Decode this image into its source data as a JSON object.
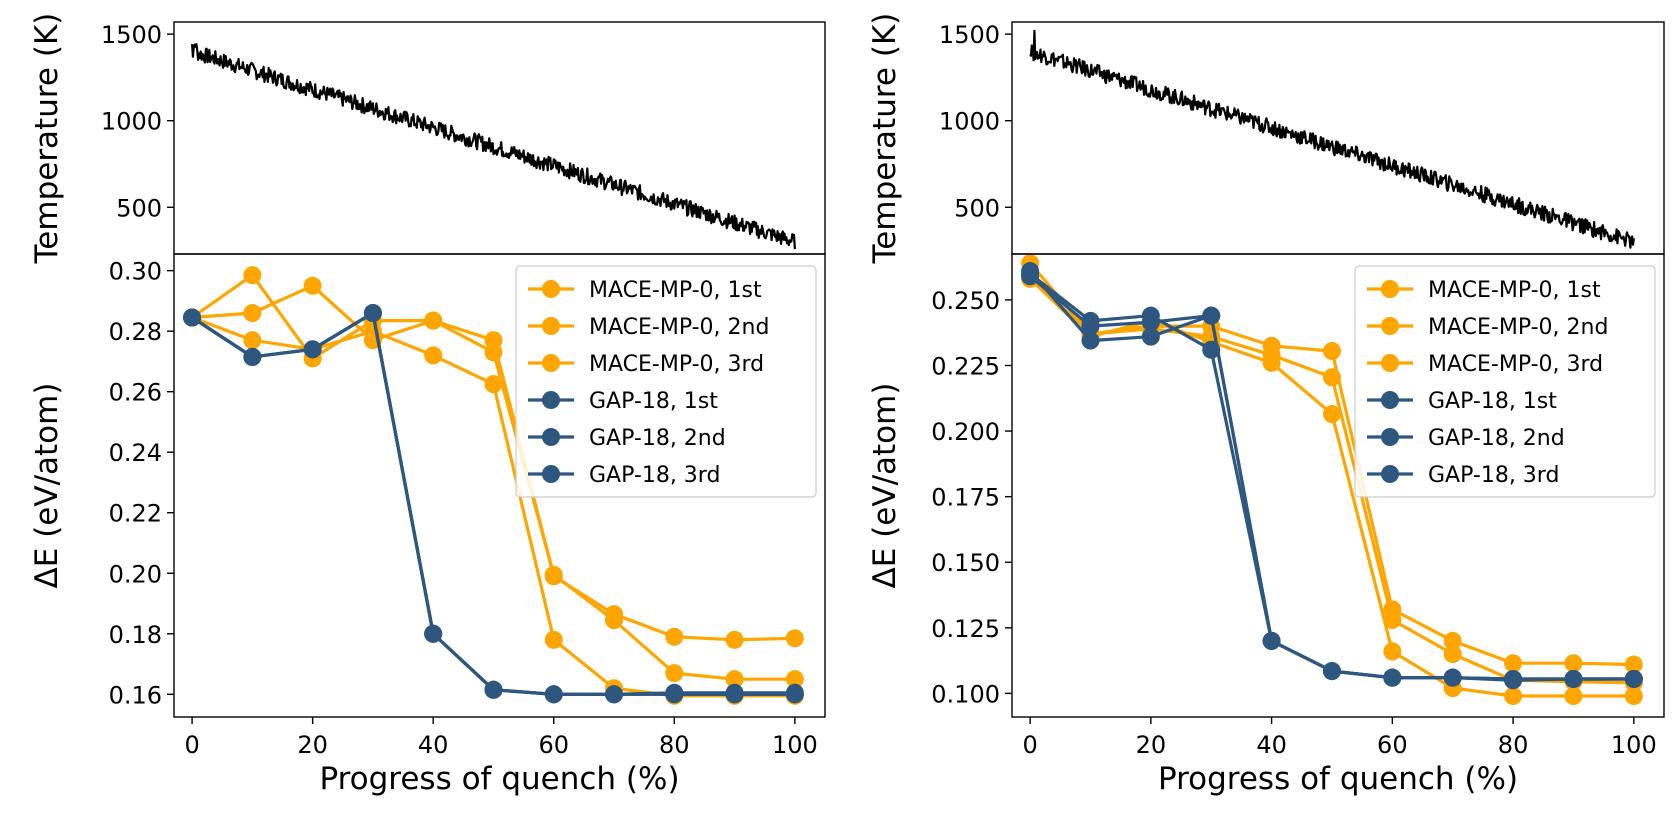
{
  "colors": {
    "mace": "#FFA500",
    "gap": "#2E5780",
    "temperature": "#000000"
  },
  "chart_data": [
    {
      "panel": "left",
      "temperature": {
        "type": "line",
        "ylabel": "Temperature (K)",
        "yticks": [
          "500",
          "1000",
          "1500"
        ],
        "xlim": [
          -3,
          105
        ],
        "ylim": [
          230,
          1570
        ],
        "start": 1400,
        "end": 300,
        "noise": 45,
        "grid": false
      },
      "energy": {
        "type": "line",
        "xlabel": "Progress of quench (%)",
        "ylabel": "ΔE (eV/atom)",
        "xticks": [
          "0",
          "20",
          "40",
          "60",
          "80",
          "100"
        ],
        "yticks": [
          "0.16",
          "0.18",
          "0.20",
          "0.22",
          "0.24",
          "0.26",
          "0.28",
          "0.30"
        ],
        "xlim": [
          -3,
          105
        ],
        "ylim": [
          0.1525,
          0.3055
        ],
        "legend_position": "upper right",
        "grid": false,
        "x": [
          0,
          10,
          20,
          30,
          40,
          50,
          60,
          70,
          80,
          90,
          100
        ],
        "series": [
          {
            "name": "MACE-MP-0, 1st",
            "group": "mace",
            "values": [
              0.2845,
              0.2985,
              0.271,
              0.2835,
              0.2835,
              0.277,
              0.199,
              0.1865,
              0.179,
              0.178,
              0.1785
            ]
          },
          {
            "name": "MACE-MP-0, 2nd",
            "group": "mace",
            "values": [
              0.2845,
              0.286,
              0.295,
              0.277,
              0.2835,
              0.273,
              0.1995,
              0.1845,
              0.167,
              0.165,
              0.165
            ]
          },
          {
            "name": "MACE-MP-0, 3rd",
            "group": "mace",
            "values": [
              0.2845,
              0.277,
              0.274,
              0.28,
              0.272,
              0.2625,
              0.178,
              0.162,
              0.1595,
              0.1595,
              0.1595
            ]
          },
          {
            "name": "GAP-18, 1st",
            "group": "gap",
            "values": [
              0.2845,
              0.2715,
              0.274,
              0.286,
              0.18,
              0.1615,
              0.16,
              0.16,
              0.1605,
              0.1605,
              0.1605
            ]
          },
          {
            "name": "GAP-18, 2nd",
            "group": "gap",
            "values": [
              0.2845,
              0.2715,
              0.274,
              0.286,
              0.18,
              0.1615,
              0.16,
              0.16,
              0.16,
              0.16,
              0.16
            ]
          },
          {
            "name": "GAP-18, 3rd",
            "group": "gap",
            "values": [
              0.2845,
              0.2715,
              0.274,
              0.286,
              0.18,
              0.1615,
              0.16,
              0.16,
              0.16,
              0.16,
              0.16
            ]
          }
        ]
      }
    },
    {
      "panel": "right",
      "temperature": {
        "type": "line",
        "ylabel": "Temperature (K)",
        "yticks": [
          "500",
          "1000",
          "1500"
        ],
        "xlim": [
          -3,
          105
        ],
        "ylim": [
          230,
          1570
        ],
        "start": 1400,
        "end": 300,
        "noise": 45,
        "grid": false
      },
      "energy": {
        "type": "line",
        "xlabel": "Progress of quench (%)",
        "ylabel": "ΔE (eV/atom)",
        "xticks": [
          "0",
          "20",
          "40",
          "60",
          "80",
          "100"
        ],
        "yticks": [
          "0.100",
          "0.125",
          "0.150",
          "0.175",
          "0.200",
          "0.225",
          "0.250"
        ],
        "xlim": [
          -3,
          105
        ],
        "ylim": [
          0.091,
          0.2675
        ],
        "legend_position": "upper right",
        "grid": false,
        "x": [
          0,
          10,
          20,
          30,
          40,
          50,
          60,
          70,
          80,
          90,
          100
        ],
        "series": [
          {
            "name": "MACE-MP-0, 1st",
            "group": "mace",
            "values": [
              0.264,
              0.237,
              0.24,
              0.24,
              0.2325,
              0.2305,
              0.132,
              0.12,
              0.1115,
              0.1115,
              0.111
            ]
          },
          {
            "name": "MACE-MP-0, 2nd",
            "group": "mace",
            "values": [
              0.259,
              0.237,
              0.239,
              0.236,
              0.229,
              0.2205,
              0.128,
              0.115,
              0.105,
              0.1045,
              0.104
            ]
          },
          {
            "name": "MACE-MP-0, 3rd",
            "group": "mace",
            "values": [
              0.258,
              0.236,
              0.242,
              0.234,
              0.226,
              0.2065,
              0.116,
              0.102,
              0.099,
              0.099,
              0.099
            ]
          },
          {
            "name": "GAP-18, 1st",
            "group": "gap",
            "values": [
              0.26,
              0.242,
              0.244,
              0.231,
              0.12,
              0.1085,
              0.106,
              0.106,
              0.105,
              0.1055,
              0.1055
            ]
          },
          {
            "name": "GAP-18, 2nd",
            "group": "gap",
            "values": [
              0.261,
              0.2345,
              0.236,
              0.244,
              0.12,
              0.1085,
              0.106,
              0.106,
              0.1055,
              0.1055,
              0.1055
            ]
          },
          {
            "name": "GAP-18, 3rd",
            "group": "gap",
            "values": [
              0.259,
              0.24,
              0.2415,
              0.244,
              0.12,
              0.1085,
              0.106,
              0.106,
              0.1055,
              0.1055,
              0.1055
            ]
          }
        ]
      }
    }
  ]
}
